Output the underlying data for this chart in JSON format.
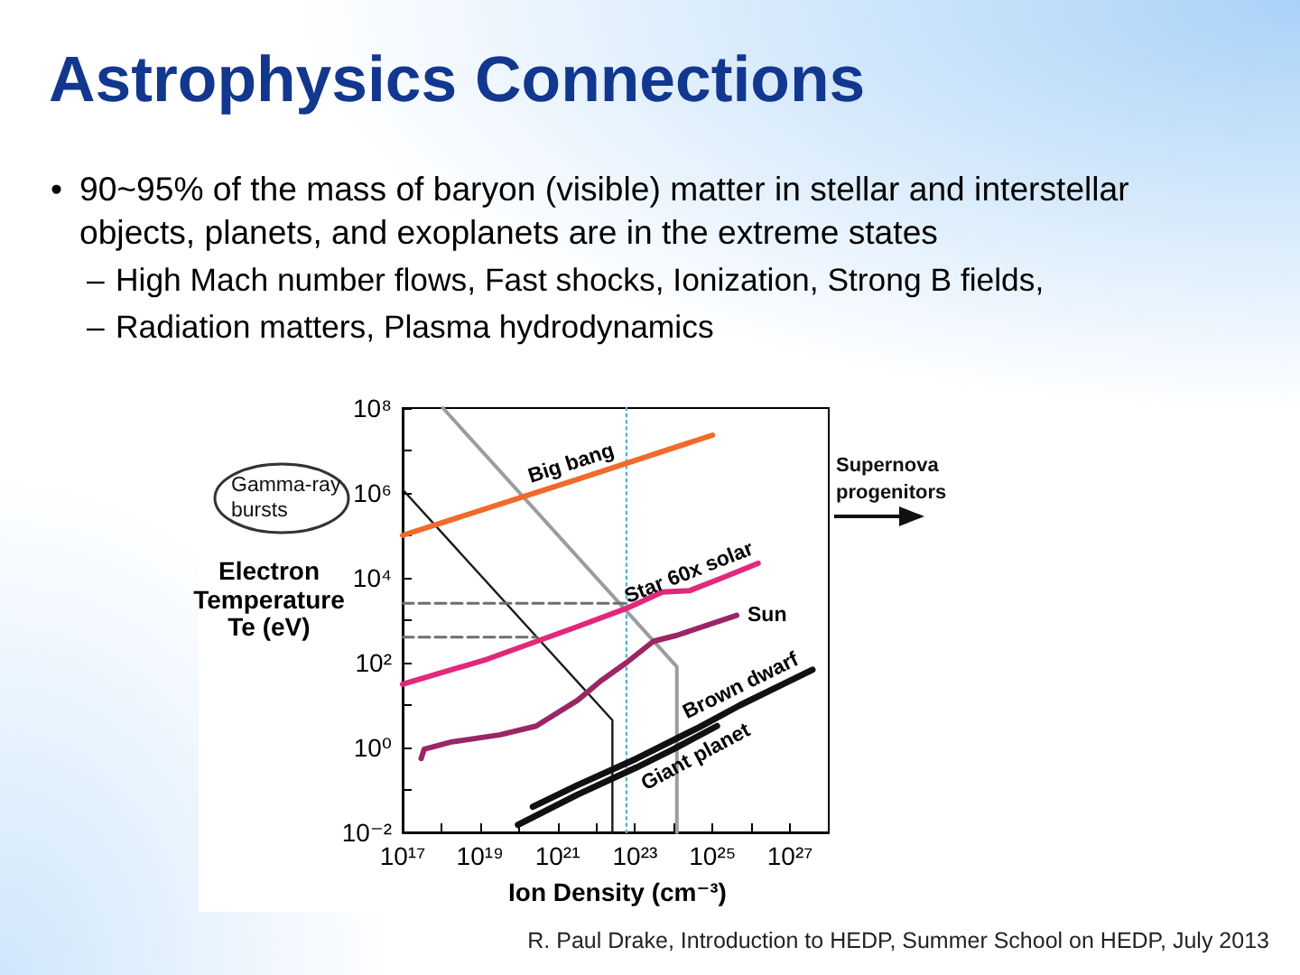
{
  "chart_data": {
    "type": "line",
    "title": "Astrophysics Connections",
    "subtitle": "• 90~95% of the mass of baryon (visible) matter in stellar and interstellar objects, planets, and exoplanets are in the extreme states",
    "xlabel": "Ion Density (cm⁻³)",
    "ylabel": "Electron Temperature Te (eV)",
    "annotations": [
      "– High Mach number flows, Fast shocks, Ionization, Strong B fields,",
      "– Radiation matters, Plasma hydrodynamics",
      "Gamma-ray bursts",
      "Supernova progenitors",
      "R. Paul Drake, Introduction to HEDP, Summer School on HEDP, July 2013"
    ],
    "log": "xy",
    "xlim": [
      1e+17,
      1e+28
    ],
    "xticks": [
      {
        "value": 1e+17,
        "label": "10¹⁷"
      },
      {
        "value": 1e+18,
        "label": null
      },
      {
        "value": 1e+19,
        "label": "10¹⁹"
      },
      {
        "value": 1e+20,
        "label": null
      },
      {
        "value": 1e+21,
        "label": "10²¹"
      },
      {
        "value": 1e+22,
        "label": null
      },
      {
        "value": 1e+23,
        "label": "10²³"
      },
      {
        "value": 1e+24,
        "label": null
      },
      {
        "value": 1e+25,
        "label": "10²⁵"
      },
      {
        "value": 1e+26,
        "label": null
      },
      {
        "value": 1e+27,
        "label": "10²⁷"
      }
    ],
    "ylim": [
      0.01,
      100000000.0
    ],
    "yticks": [
      {
        "value": 0.01,
        "label": "10⁻²"
      },
      {
        "value": 0.1,
        "label": null
      },
      {
        "value": 1,
        "label": "10⁰"
      },
      {
        "value": 10,
        "label": null
      },
      {
        "value": 100,
        "label": "10²"
      },
      {
        "value": 1000,
        "label": null
      },
      {
        "value": 10000,
        "label": "10⁴"
      },
      {
        "value": 100000,
        "label": null
      },
      {
        "value": 1000000,
        "label": "10⁶"
      },
      {
        "value": 10000000,
        "label": null
      },
      {
        "value": 100000000,
        "label": "10⁸"
      }
    ],
    "series": [
      {
        "color": "#55b5d5",
        "line_style": "dotted",
        "x": [
          6e+22,
          6e+22
        ],
        "values": [
          0.01,
          100000000.0
        ]
      },
      {
        "color": "#9c9c9c",
        "x": [
          1.1e+18,
          1.2e+24,
          1.2e+24
        ],
        "values": [
          100000000.0,
          80,
          0.01
        ]
      },
      {
        "color": "#1a1a1a",
        "x": [
          1e+17,
          2.6e+22,
          2.6e+22
        ],
        "values": [
          1200000.0,
          4.4,
          0.01
        ]
      },
      {
        "color": "#6e6e6e",
        "line_style": "dashed",
        "x": [
          1e+17,
          6e+22
        ],
        "values": [
          2500,
          2500
        ]
      },
      {
        "color": "#6e6e6e",
        "line_style": "dashed",
        "x": [
          1e+17,
          2.8e+20
        ],
        "values": [
          400,
          400
        ]
      },
      {
        "name": "Big bang",
        "color": "#f06a2c",
        "x": [
          1e+17,
          3.3e+21,
          1e+25
        ],
        "values": [
          100000.0,
          2100000.0,
          23000000.0
        ]
      },
      {
        "name": "Star 60x solar",
        "color": "#e2287b",
        "x": [
          1e+17,
          1.5e+19,
          3.3e+21,
          6e+22,
          5.1e+23,
          2.6e+24,
          1.8e+25,
          1.5e+26
        ],
        "values": [
          31,
          120,
          710,
          1900,
          4600,
          5000,
          10000,
          22000
        ]
      },
      {
        "name": "Sun",
        "color": "#9b2665",
        "x": [
          3e+17,
          3.6e+17,
          1.8e+18,
          3.3e+19,
          2.8e+20,
          3.3e+21,
          1.3e+22,
          6e+22,
          3e+23,
          1.2e+24,
          4.2e+25
        ],
        "values": [
          0.55,
          0.91,
          1.35,
          2,
          3.2,
          13,
          37,
          100,
          320,
          440,
          1300
        ]
      },
      {
        "name": "Brown dwarf",
        "color": "#111111",
        "x": [
          2.3e+20,
          3.3e+21,
          1.1e+23,
          4.5e+24,
          5.2e+25,
          3.8e+27
        ],
        "values": [
          0.04,
          0.13,
          0.55,
          3,
          10,
          68
        ]
      },
      {
        "name": "Giant planet",
        "color": "#111111",
        "x": [
          9.5e+19,
          3.3e+21,
          1.1e+23,
          9.8e+23,
          1.3e+25
        ],
        "values": [
          0.015,
          0.078,
          0.34,
          0.91,
          3.2
        ]
      }
    ]
  }
}
